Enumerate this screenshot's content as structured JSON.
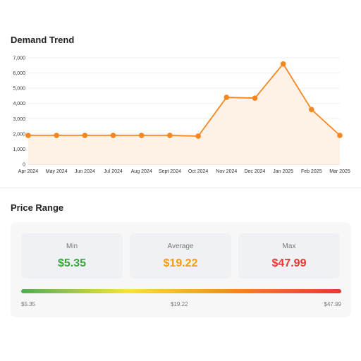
{
  "demand": {
    "title": "Demand Trend"
  },
  "chart_data": {
    "type": "area",
    "title": "Demand Trend",
    "categories": [
      "Apr 2024",
      "May 2024",
      "Jun 2024",
      "Jul 2024",
      "Aug 2024",
      "Sept 2024",
      "Oct 2024",
      "Nov 2024",
      "Dec 2024",
      "Jan 2025",
      "Feb 2025",
      "Mar 2025"
    ],
    "series": [
      {
        "values": [
          1900,
          1900,
          1900,
          1900,
          1900,
          1900,
          1850,
          4400,
          4350,
          6600,
          3600,
          1900
        ]
      }
    ],
    "y_ticks": [
      "0",
      "1,000",
      "2,000",
      "3,000",
      "4,000",
      "5,000",
      "6,000",
      "7,000"
    ],
    "ylim": [
      0,
      7000
    ],
    "grid": true,
    "legend": "none",
    "line_color": "#f5871f",
    "fill_color": "#fef1e6"
  },
  "price": {
    "title": "Price Range",
    "cards": [
      {
        "label": "Min",
        "value": "$5.35",
        "color": "#3da53d"
      },
      {
        "label": "Average",
        "value": "$19.22",
        "color": "#f39c12"
      },
      {
        "label": "Max",
        "value": "$47.99",
        "color": "#e53935"
      }
    ],
    "range_labels": {
      "min": "$5.35",
      "avg": "$19.22",
      "max": "$47.99"
    },
    "gradient_colors": [
      "#4caf50",
      "#f7e23d",
      "#f5871f",
      "#e53935"
    ]
  }
}
